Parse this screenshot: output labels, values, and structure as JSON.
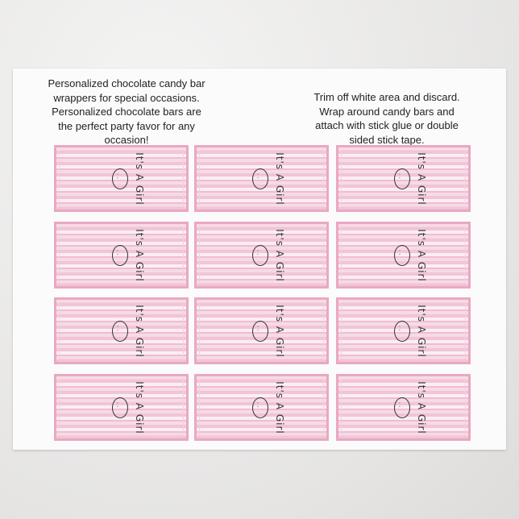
{
  "instructions": {
    "left": "Personalized chocolate candy bar wrappers for special occasions.  Personalized chocolate bars are the perfect party favor for any occasion!",
    "right": "Trim off white area and discard. Wrap around candy bars and attach with stick glue or double sided stick tape."
  },
  "wrapper": {
    "label": "It's A Girl",
    "icon": "baby-face-icon",
    "count": 12
  },
  "colors": {
    "border": "#e9a8c2",
    "stripe": "#f1c4d6"
  }
}
